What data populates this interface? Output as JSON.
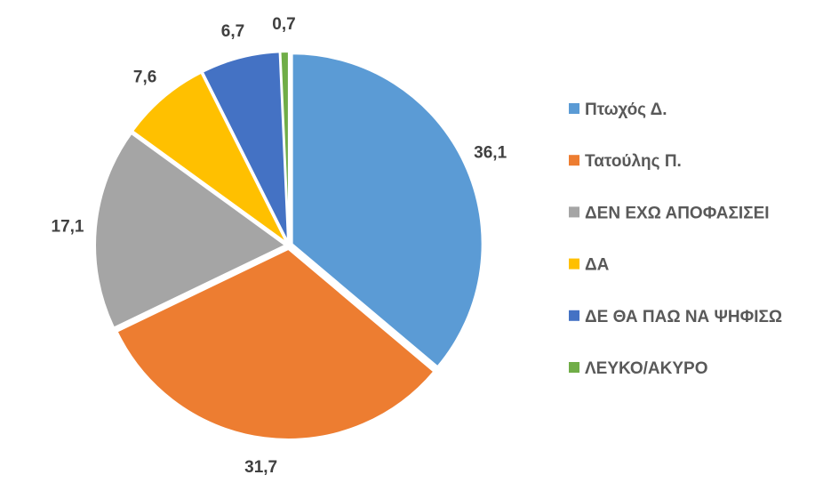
{
  "chart_data": {
    "type": "pie",
    "title": "",
    "start_angle": "12 o'clock",
    "direction": "clockwise",
    "legend_position": "right",
    "slices": [
      {
        "label": "Πτωχός Δ.",
        "value": 36.1,
        "display": "36,1",
        "color": "#5B9BD5"
      },
      {
        "label": "Τατούλης Π.",
        "value": 31.7,
        "display": "31,7",
        "color": "#ED7D31"
      },
      {
        "label": "ΔΕΝ ΕΧΩ ΑΠΟΦΑΣΙΣΕΙ",
        "value": 17.1,
        "display": "17,1",
        "color": "#A5A5A5"
      },
      {
        "label": "ΔΑ",
        "value": 7.6,
        "display": "7,6",
        "color": "#FFC000"
      },
      {
        "label": "ΔΕ ΘΑ ΠΑΩ ΝΑ ΨΗΦΙΣΩ",
        "value": 6.7,
        "display": "6,7",
        "color": "#4472C4"
      },
      {
        "label": "ΛΕΥΚΟ/ΑΚΥΡΟ",
        "value": 0.7,
        "display": "0,7",
        "color": "#70AD47"
      }
    ]
  }
}
